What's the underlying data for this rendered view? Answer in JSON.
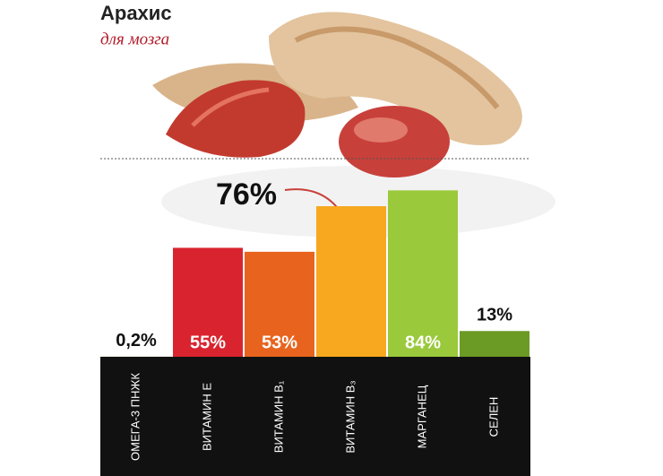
{
  "chart_data": {
    "type": "bar",
    "title": "Арахис",
    "subtitle": "для мозга",
    "categories": [
      "ОМЕГА-3 ПНЖК",
      "ВИТАМИН Е",
      "ВИТАМИН В₁",
      "ВИТАМИН В₃",
      "МАРГАНЕЦ",
      "СЕЛЕН"
    ],
    "values": [
      0.2,
      55,
      53,
      76,
      84,
      13
    ],
    "value_labels": [
      "0,2%",
      "55%",
      "53%",
      "76%",
      "84%",
      "13%"
    ],
    "colors": [
      "#e8e2d0",
      "#d9242f",
      "#e8641e",
      "#f7a81e",
      "#9ac93b",
      "#6b9a25"
    ],
    "ylim": [
      0,
      100
    ]
  }
}
